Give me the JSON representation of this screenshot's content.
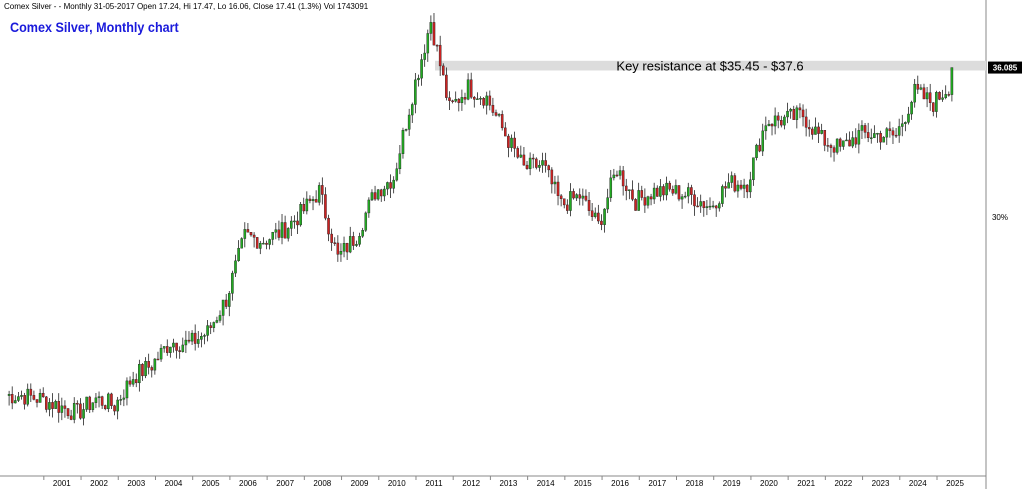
{
  "header": {
    "info_line": "Comex Silver -  - Monthly 31-05-2017 Open 17.24, Hi 17.47, Lo 16.06, Close 17.41 (1.3%) Vol 1743091",
    "title": "Comex Silver, Monthly chart"
  },
  "annotation": {
    "label": "Key resistance at $35.45 - $37.6",
    "zone_low": 35.45,
    "zone_high": 37.6
  },
  "price_tag": "36.085",
  "scale_label": "30%",
  "colors": {
    "up": "#22aa22",
    "down": "#cc2222",
    "zone": "#dcdcdc",
    "title": "#1a1adb",
    "price_tag_bg": "#000000"
  },
  "chart_data": {
    "type": "candlestick",
    "timeframe": "monthly",
    "x_axis_labels": [
      "2001",
      "2002",
      "2003",
      "2004",
      "2005",
      "2006",
      "2007",
      "2008",
      "2009",
      "2010",
      "2011",
      "2012",
      "2013",
      "2014",
      "2015",
      "2016",
      "2017",
      "2018",
      "2019",
      "2020",
      "2021",
      "2022",
      "2023",
      "2024",
      "2025"
    ],
    "ylim": [
      3,
      50
    ],
    "yscale": "log",
    "year_closes": [
      [
        2000,
        4.9,
        4.8
      ],
      [
        2001,
        4.6,
        4.4
      ],
      [
        2002,
        4.8,
        4.6
      ],
      [
        2003,
        5.5,
        5.9
      ],
      [
        2004,
        6.8,
        6.7
      ],
      [
        2005,
        7.2,
        8.8
      ],
      [
        2006,
        12.9,
        12.6
      ],
      [
        2007,
        13.3,
        14.8
      ],
      [
        2008,
        17.0,
        11.3
      ],
      [
        2009,
        13.0,
        16.9
      ],
      [
        2010,
        18.5,
        30.6
      ],
      [
        2011,
        48.0,
        28.0
      ],
      [
        2012,
        32.0,
        30.0
      ],
      [
        2013,
        24.0,
        19.5
      ],
      [
        2014,
        20.0,
        15.6
      ],
      [
        2015,
        16.5,
        13.8
      ],
      [
        2016,
        19.5,
        16.0
      ],
      [
        2017,
        17.0,
        17.0
      ],
      [
        2018,
        16.5,
        15.5
      ],
      [
        2019,
        17.8,
        17.9
      ],
      [
        2020,
        26.0,
        26.3
      ],
      [
        2021,
        27.0,
        23.3
      ],
      [
        2022,
        22.0,
        24.0
      ],
      [
        2023,
        24.0,
        23.8
      ],
      [
        2024,
        31.0,
        29.0
      ],
      [
        2025,
        33.0,
        36.085
      ]
    ]
  }
}
